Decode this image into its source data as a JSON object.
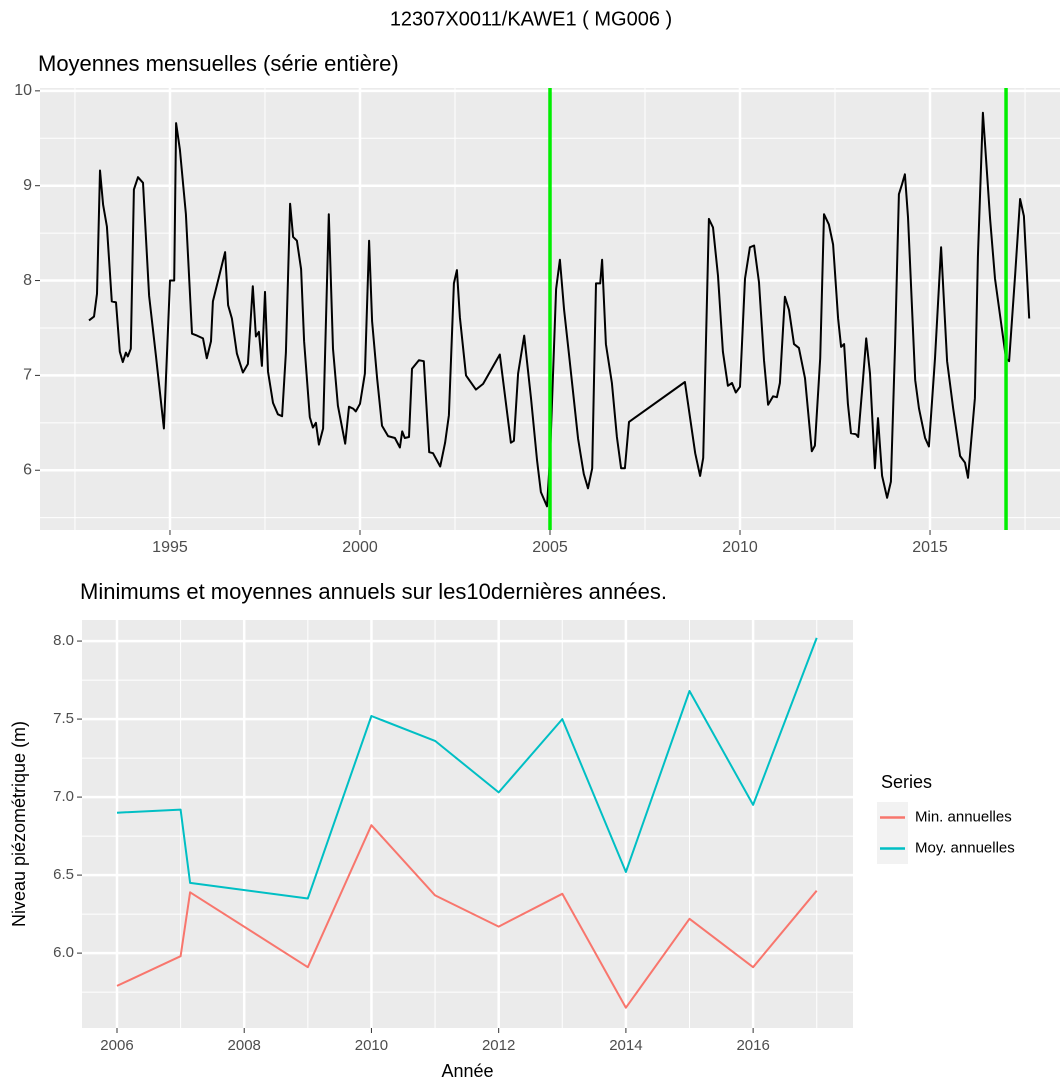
{
  "title": "12307X0011/KAWE1 ( MG006 )",
  "chart_data": [
    {
      "type": "line",
      "title": "Moyennes mensuelles (série entière)",
      "color": "#000000",
      "x": [
        1992.87,
        1993.0,
        1993.08,
        1993.16,
        1993.24,
        1993.34,
        1993.47,
        1993.58,
        1993.68,
        1993.76,
        1993.84,
        1993.89,
        1993.97,
        1994.05,
        1994.16,
        1994.29,
        1994.45,
        1994.63,
        1994.84,
        1995.0,
        1995.11,
        1995.16,
        1995.26,
        1995.42,
        1995.58,
        1995.71,
        1995.87,
        1995.97,
        1996.08,
        1996.13,
        1996.45,
        1996.53,
        1996.63,
        1996.76,
        1996.92,
        1997.05,
        1997.18,
        1997.26,
        1997.34,
        1997.42,
        1997.5,
        1997.58,
        1997.71,
        1997.84,
        1997.95,
        1998.05,
        1998.16,
        1998.24,
        1998.34,
        1998.45,
        1998.53,
        1998.68,
        1998.76,
        1998.84,
        1998.92,
        1999.03,
        1999.18,
        1999.29,
        1999.42,
        1999.61,
        1999.71,
        1999.82,
        1999.89,
        2000.0,
        2000.13,
        2000.24,
        2000.32,
        2000.45,
        2000.58,
        2000.74,
        2000.92,
        2001.05,
        2001.11,
        2001.18,
        2001.29,
        2001.37,
        2001.55,
        2001.68,
        2001.82,
        2001.92,
        2002.11,
        2002.24,
        2002.34,
        2002.47,
        2002.55,
        2002.63,
        2002.79,
        2003.05,
        2003.24,
        2003.68,
        2003.97,
        2004.05,
        2004.16,
        2004.32,
        2004.5,
        2004.66,
        2004.76,
        2004.92,
        2005.0,
        2005.16,
        2005.26,
        2005.37,
        2005.5,
        2005.61,
        2005.74,
        2005.89,
        2006.0,
        2006.11,
        2006.21,
        2006.32,
        2006.37,
        2006.47,
        2006.63,
        2006.76,
        2006.87,
        2006.97,
        2007.08,
        2008.55,
        2008.82,
        2008.95,
        2009.03,
        2009.18,
        2009.29,
        2009.42,
        2009.55,
        2009.68,
        2009.79,
        2009.89,
        2010.0,
        2010.13,
        2010.26,
        2010.37,
        2010.5,
        2010.63,
        2010.74,
        2010.87,
        2010.97,
        2011.05,
        2011.18,
        2011.29,
        2011.42,
        2011.55,
        2011.71,
        2011.89,
        2011.97,
        2012.11,
        2012.21,
        2012.34,
        2012.45,
        2012.58,
        2012.66,
        2012.74,
        2012.84,
        2012.92,
        2013.05,
        2013.11,
        2013.24,
        2013.32,
        2013.42,
        2013.55,
        2013.63,
        2013.74,
        2013.87,
        2013.97,
        2014.08,
        2014.18,
        2014.26,
        2014.34,
        2014.42,
        2014.61,
        2014.71,
        2014.87,
        2014.97,
        2015.13,
        2015.29,
        2015.45,
        2015.61,
        2015.79,
        2015.92,
        2016.0,
        2016.18,
        2016.26,
        2016.39,
        2016.45,
        2016.58,
        2016.71,
        2016.89,
        2017.0,
        2017.08,
        2017.24,
        2017.37,
        2017.47,
        2017.61
      ],
      "values": [
        7.58,
        7.62,
        7.86,
        9.16,
        8.8,
        8.57,
        7.78,
        7.77,
        7.25,
        7.14,
        7.24,
        7.2,
        7.28,
        8.96,
        9.09,
        9.03,
        7.84,
        7.21,
        6.44,
        8.0,
        8.0,
        9.66,
        9.38,
        8.7,
        7.44,
        7.42,
        7.39,
        7.18,
        7.36,
        7.78,
        8.3,
        7.74,
        7.6,
        7.23,
        7.03,
        7.12,
        7.94,
        7.41,
        7.46,
        7.1,
        7.88,
        7.04,
        6.71,
        6.59,
        6.57,
        7.24,
        8.81,
        8.46,
        8.42,
        8.12,
        7.36,
        6.56,
        6.45,
        6.5,
        6.27,
        6.44,
        8.7,
        7.28,
        6.68,
        6.28,
        6.67,
        6.65,
        6.62,
        6.7,
        7.02,
        8.42,
        7.57,
        6.97,
        6.47,
        6.36,
        6.34,
        6.24,
        6.41,
        6.34,
        6.35,
        7.07,
        7.16,
        7.15,
        6.19,
        6.18,
        6.04,
        6.29,
        6.58,
        7.97,
        8.11,
        7.61,
        7.0,
        6.85,
        6.91,
        7.22,
        6.29,
        6.31,
        7.02,
        7.42,
        6.76,
        6.1,
        5.77,
        5.62,
        6.13,
        7.91,
        8.22,
        7.69,
        7.22,
        6.81,
        6.33,
        5.96,
        5.81,
        6.02,
        7.97,
        7.97,
        8.22,
        7.33,
        6.92,
        6.35,
        6.02,
        6.02,
        6.51,
        6.93,
        6.18,
        5.94,
        6.13,
        8.65,
        8.56,
        8.05,
        7.25,
        6.89,
        6.92,
        6.82,
        6.88,
        8.02,
        8.35,
        8.37,
        7.98,
        7.16,
        6.69,
        6.78,
        6.77,
        6.92,
        7.83,
        7.69,
        7.33,
        7.29,
        6.97,
        6.2,
        6.26,
        7.18,
        8.7,
        8.59,
        8.38,
        7.6,
        7.3,
        7.33,
        6.7,
        6.39,
        6.38,
        6.35,
        6.97,
        7.39,
        7.02,
        6.02,
        6.55,
        5.94,
        5.71,
        5.88,
        7.33,
        8.91,
        9.01,
        9.12,
        8.67,
        6.95,
        6.65,
        6.34,
        6.25,
        7.18,
        8.35,
        7.15,
        6.65,
        6.15,
        6.08,
        5.92,
        6.76,
        8.25,
        9.77,
        9.43,
        8.65,
        8.02,
        7.49,
        7.18,
        7.15,
        8.07,
        8.86,
        8.68,
        7.6
      ],
      "vlines": [
        2005,
        2017
      ],
      "vline_color": "#00ee00",
      "xlim": [
        1991.58,
        2018.42
      ],
      "xticks": [
        1995,
        2000,
        2005,
        2010,
        2015
      ],
      "xminorticks": [
        1992.5,
        1997.5,
        2002.5,
        2007.5,
        2012.5,
        2017.5
      ],
      "ylim": [
        5.37,
        10.03
      ],
      "yticks": [
        6,
        7,
        8,
        9,
        10
      ],
      "yminorticks": [
        5.5,
        6.5,
        7.5,
        8.5,
        9.5
      ],
      "grid": true
    },
    {
      "type": "line",
      "title": "Minimums et moyennes annuels sur les10dernières années.",
      "xlabel": "Année",
      "ylabel": "Niveau piézométrique (m)",
      "legend_title": "Series",
      "legend": "right",
      "x": [
        2006,
        2007,
        2007.15,
        2009,
        2010,
        2011,
        2012,
        2013,
        2014,
        2015,
        2016,
        2017
      ],
      "series": [
        {
          "name": "Min. annuelles",
          "color": "#f8766d",
          "values": [
            5.79,
            5.98,
            6.39,
            5.91,
            6.82,
            6.37,
            6.17,
            6.38,
            5.65,
            6.22,
            5.91,
            6.4
          ]
        },
        {
          "name": "Moy. annuelles",
          "color": "#00bfc4",
          "values": [
            6.9,
            6.92,
            6.45,
            6.35,
            7.52,
            7.36,
            7.03,
            7.5,
            6.52,
            7.68,
            6.95,
            8.02
          ]
        }
      ],
      "xlim": [
        2005.45,
        2017.57
      ],
      "xticks": [
        2006,
        2008,
        2010,
        2012,
        2014,
        2016
      ],
      "xminorticks": [
        2007,
        2009,
        2011,
        2013,
        2015,
        2017
      ],
      "ylim": [
        5.52,
        8.135
      ],
      "yticks": [
        {
          "value": 6,
          "label": "6.0"
        },
        6.5,
        {
          "value": 7,
          "label": "7.0"
        },
        7.5,
        {
          "value": 8,
          "label": "8.0"
        }
      ],
      "yminorticks": [
        5.75,
        6.25,
        6.75,
        7.25,
        7.75
      ],
      "grid": true
    }
  ]
}
